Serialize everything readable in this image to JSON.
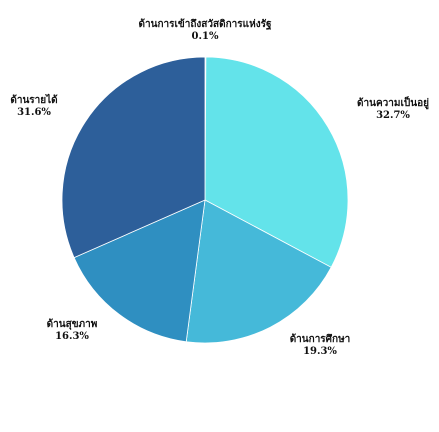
{
  "chart_data": {
    "type": "pie",
    "start_angle_deg": 0,
    "direction": "clockwise",
    "slices": [
      {
        "label": "ด้านการเข้าถึงสวัสดิการแห่งรัฐ",
        "value": 0.1,
        "value_label": "0.1%",
        "color": "#2b5d97"
      },
      {
        "label": "ด้านความเป็นอยู่",
        "value": 32.7,
        "value_label": "32.7%",
        "color": "#63e3ea"
      },
      {
        "label": "ด้านการศึกษา",
        "value": 19.3,
        "value_label": "19.3%",
        "color": "#45b9d9"
      },
      {
        "label": "ด้านสุขภาพ",
        "value": 16.3,
        "value_label": "16.3%",
        "color": "#2f8fc1"
      },
      {
        "label": "ด้านรายได้",
        "value": 31.6,
        "value_label": "31.6%",
        "color": "#2d5f9a"
      }
    ]
  }
}
